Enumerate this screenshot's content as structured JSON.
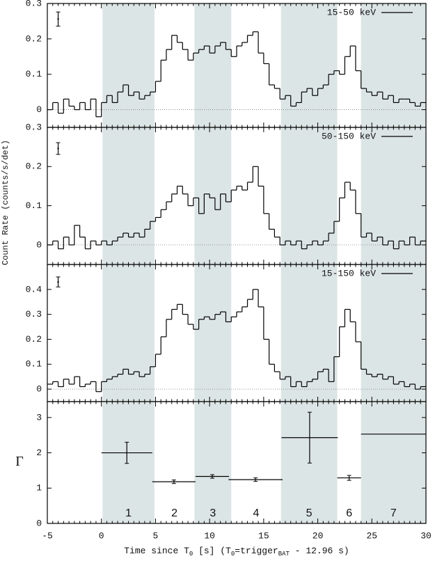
{
  "chart_data": [
    {
      "type": "histogram",
      "legend": "15-50 keV",
      "legend_corner": "upper right",
      "color": "#000000",
      "xlim": [
        -5,
        30
      ],
      "ylim": [
        -0.05,
        0.3
      ],
      "yticks": [
        0,
        0.1,
        0.2,
        0.3
      ],
      "zero_line": true,
      "bins": [
        -5,
        -4.5,
        -4,
        -3.5,
        -3,
        -2.5,
        -2,
        -1.5,
        -1,
        -0.5,
        0,
        0.5,
        1,
        1.5,
        2,
        2.5,
        3,
        3.5,
        4,
        4.5,
        5,
        5.5,
        6,
        6.5,
        7,
        7.5,
        8,
        8.5,
        9,
        9.5,
        10,
        10.5,
        11,
        11.5,
        12,
        12.5,
        13,
        13.5,
        14,
        14.5,
        15,
        15.5,
        16,
        16.5,
        17,
        17.5,
        18,
        18.5,
        19,
        19.5,
        20,
        20.5,
        21,
        21.5,
        22,
        22.5,
        23,
        23.5,
        24,
        24.5,
        25,
        25.5,
        26,
        26.5,
        27,
        27.5,
        28,
        28.5,
        29,
        29.5,
        30
      ],
      "values": [
        0.0,
        0.02,
        -0.01,
        0.03,
        0.01,
        0.0,
        0.02,
        0.0,
        0.03,
        -0.02,
        0.02,
        0.04,
        0.02,
        0.05,
        0.07,
        0.04,
        0.05,
        0.03,
        0.04,
        0.05,
        0.08,
        0.14,
        0.17,
        0.21,
        0.19,
        0.17,
        0.14,
        0.16,
        0.17,
        0.18,
        0.16,
        0.18,
        0.19,
        0.17,
        0.15,
        0.18,
        0.19,
        0.21,
        0.22,
        0.16,
        0.13,
        0.07,
        0.06,
        0.03,
        0.04,
        0.01,
        0.02,
        0.05,
        0.06,
        0.04,
        0.06,
        0.07,
        0.1,
        0.11,
        0.1,
        0.15,
        0.18,
        0.11,
        0.06,
        0.05,
        0.04,
        0.05,
        0.03,
        0.04,
        0.02,
        0.03,
        0.03,
        0.02,
        0.01,
        0.02
      ],
      "typical_error": {
        "x": -4,
        "y": 0.256,
        "err": 0.02
      }
    },
    {
      "type": "histogram",
      "legend": "50-150 keV",
      "legend_corner": "upper right",
      "color": "#000000",
      "ylabel": "Count Rate (counts/s/det)",
      "xlim": [
        -5,
        30
      ],
      "ylim": [
        -0.05,
        0.3
      ],
      "yticks": [
        0,
        0.1,
        0.2,
        0.3
      ],
      "zero_line": true,
      "bins": [
        -5,
        -4.5,
        -4,
        -3.5,
        -3,
        -2.5,
        -2,
        -1.5,
        -1,
        -0.5,
        0,
        0.5,
        1,
        1.5,
        2,
        2.5,
        3,
        3.5,
        4,
        4.5,
        5,
        5.5,
        6,
        6.5,
        7,
        7.5,
        8,
        8.5,
        9,
        9.5,
        10,
        10.5,
        11,
        11.5,
        12,
        12.5,
        13,
        13.5,
        14,
        14.5,
        15,
        15.5,
        16,
        16.5,
        17,
        17.5,
        18,
        18.5,
        19,
        19.5,
        20,
        20.5,
        21,
        21.5,
        22,
        22.5,
        23,
        23.5,
        24,
        24.5,
        25,
        25.5,
        26,
        26.5,
        27,
        27.5,
        28,
        28.5,
        29,
        29.5,
        30
      ],
      "values": [
        0.0,
        0.01,
        -0.01,
        0.02,
        0.0,
        0.05,
        0.02,
        -0.01,
        0.01,
        0.0,
        0.01,
        0.0,
        0.01,
        0.02,
        0.03,
        0.02,
        0.03,
        0.02,
        0.04,
        0.06,
        0.07,
        0.09,
        0.11,
        0.13,
        0.15,
        0.13,
        0.1,
        0.12,
        0.08,
        0.13,
        0.12,
        0.09,
        0.13,
        0.11,
        0.14,
        0.15,
        0.14,
        0.16,
        0.2,
        0.15,
        0.08,
        0.04,
        0.02,
        0.0,
        0.01,
        0.0,
        0.01,
        -0.01,
        0.0,
        0.01,
        0.0,
        0.01,
        0.03,
        0.06,
        0.12,
        0.16,
        0.14,
        0.08,
        0.02,
        0.03,
        0.01,
        0.02,
        0.0,
        0.01,
        -0.01,
        0.01,
        0.0,
        0.02,
        0.0,
        0.01
      ],
      "typical_error": {
        "x": -4,
        "y": 0.246,
        "err": 0.015
      }
    },
    {
      "type": "histogram",
      "legend": "15-150 keV",
      "legend_corner": "upper right",
      "color": "#000000",
      "xlim": [
        -5,
        30
      ],
      "ylim": [
        -0.05,
        0.5
      ],
      "yticks": [
        0,
        0.1,
        0.2,
        0.3,
        0.4
      ],
      "zero_line": true,
      "bins": [
        -5,
        -4.5,
        -4,
        -3.5,
        -3,
        -2.5,
        -2,
        -1.5,
        -1,
        -0.5,
        0,
        0.5,
        1,
        1.5,
        2,
        2.5,
        3,
        3.5,
        4,
        4.5,
        5,
        5.5,
        6,
        6.5,
        7,
        7.5,
        8,
        8.5,
        9,
        9.5,
        10,
        10.5,
        11,
        11.5,
        12,
        12.5,
        13,
        13.5,
        14,
        14.5,
        15,
        15.5,
        16,
        16.5,
        17,
        17.5,
        18,
        18.5,
        19,
        19.5,
        20,
        20.5,
        21,
        21.5,
        22,
        22.5,
        23,
        23.5,
        24,
        24.5,
        25,
        25.5,
        26,
        26.5,
        27,
        27.5,
        28,
        28.5,
        29,
        29.5,
        30
      ],
      "values": [
        0.02,
        0.03,
        0.01,
        0.04,
        0.02,
        0.05,
        0.01,
        0.02,
        0.03,
        -0.01,
        0.03,
        0.04,
        0.05,
        0.06,
        0.08,
        0.06,
        0.07,
        0.05,
        0.06,
        0.09,
        0.14,
        0.21,
        0.28,
        0.32,
        0.34,
        0.3,
        0.26,
        0.24,
        0.28,
        0.29,
        0.28,
        0.3,
        0.31,
        0.27,
        0.29,
        0.31,
        0.33,
        0.36,
        0.4,
        0.33,
        0.2,
        0.1,
        0.07,
        0.04,
        0.05,
        0.01,
        0.03,
        0.01,
        0.03,
        0.04,
        0.07,
        0.08,
        0.03,
        0.13,
        0.25,
        0.32,
        0.27,
        0.19,
        0.08,
        0.06,
        0.05,
        0.06,
        0.04,
        0.05,
        0.02,
        0.03,
        0.01,
        0.02,
        0.0,
        0.01
      ],
      "typical_error": {
        "x": -4,
        "y": 0.43,
        "err": 0.02
      }
    },
    {
      "type": "errorbar",
      "ylabel": "Γ",
      "color": "#000000",
      "xlim": [
        -5,
        30
      ],
      "ylim": [
        0,
        3.45
      ],
      "yticks": [
        0,
        1,
        2,
        3
      ],
      "xticks": [
        -5,
        0,
        5,
        10,
        15,
        20,
        25,
        30
      ],
      "xlabel": [
        "Time since T",
        "0",
        " [s] (T",
        "0",
        "=trigger",
        "BAT",
        " - 12.96 s)"
      ],
      "xlabel_subscript": [
        false,
        true,
        false,
        true,
        false,
        true,
        false
      ],
      "x": [
        2.35,
        6.7,
        10.25,
        14.25,
        19.25,
        22.9,
        27.0
      ],
      "xerr": [
        2.35,
        2.0,
        1.55,
        2.5,
        2.6,
        1.1,
        3.0
      ],
      "values": [
        2.0,
        1.18,
        1.33,
        1.24,
        2.43,
        1.29,
        2.53
      ],
      "yerr": [
        0.3,
        0.05,
        0.05,
        0.05,
        0.72,
        0.07,
        null
      ],
      "intervals": [
        {
          "label": "1",
          "start": 0.1,
          "end": 4.9,
          "shaded": true
        },
        {
          "label": "2",
          "start": 4.9,
          "end": 8.6,
          "shaded": false
        },
        {
          "label": "3",
          "start": 8.6,
          "end": 12.0,
          "shaded": true
        },
        {
          "label": "4",
          "start": 12.0,
          "end": 16.6,
          "shaded": false
        },
        {
          "label": "5",
          "start": 16.6,
          "end": 21.8,
          "shaded": true
        },
        {
          "label": "6",
          "start": 21.8,
          "end": 24.0,
          "shaded": false
        },
        {
          "label": "7",
          "start": 24.0,
          "end": 30,
          "shaded": true
        }
      ],
      "shade_color": "#dce5e5"
    }
  ]
}
